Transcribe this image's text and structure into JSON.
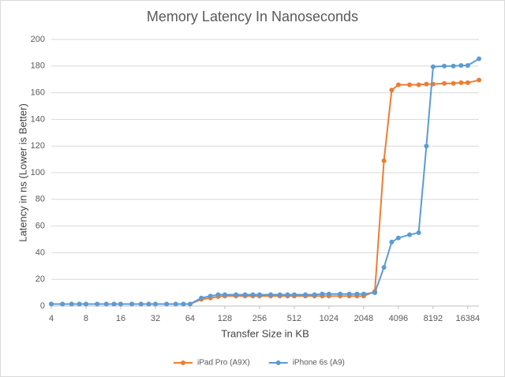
{
  "chart_data": {
    "type": "line",
    "title": "Memory Latency In Nanoseconds",
    "x_label": "Transfer Size in KB",
    "y_label": "Latency in ns (Lower is Better)",
    "x": [
      4,
      5,
      6,
      7,
      8,
      10,
      12,
      14,
      16,
      20,
      24,
      28,
      32,
      40,
      48,
      56,
      64,
      80,
      96,
      112,
      128,
      160,
      192,
      224,
      256,
      320,
      384,
      448,
      512,
      640,
      768,
      896,
      1024,
      1280,
      1536,
      1792,
      2048,
      2560,
      3072,
      3584,
      4096,
      5120,
      6144,
      7168,
      8192,
      10240,
      12288,
      14336,
      16384,
      20480
    ],
    "series": [
      {
        "name": "iPad Pro (A9X)",
        "color": "#ed7d31",
        "values": [
          1.5,
          1.5,
          1.5,
          1.5,
          1.5,
          1.5,
          1.5,
          1.5,
          1.5,
          1.5,
          1.5,
          1.5,
          1.5,
          1.5,
          1.5,
          1.5,
          1.5,
          5,
          6,
          7,
          7.5,
          7.5,
          7.5,
          7.5,
          7.5,
          7.5,
          7.5,
          7.5,
          7.5,
          7.5,
          7.5,
          7.5,
          7.5,
          7.5,
          7.5,
          7.5,
          7.5,
          11,
          109,
          162,
          166,
          166,
          166,
          166.5,
          166.5,
          167,
          167,
          167.5,
          167.5,
          169.5
        ]
      },
      {
        "name": "iPhone 6s (A9)",
        "color": "#5b9bd5",
        "values": [
          1.5,
          1.5,
          1.5,
          1.5,
          1.5,
          1.5,
          1.5,
          1.5,
          1.5,
          1.5,
          1.5,
          1.5,
          1.5,
          1.5,
          1.5,
          1.5,
          1.5,
          6,
          7.5,
          8.5,
          8.5,
          8.5,
          8.5,
          8.5,
          8.5,
          8.5,
          8.5,
          8.5,
          8.5,
          8.5,
          8.5,
          9,
          9,
          9,
          9,
          9,
          9,
          10,
          29,
          48,
          51,
          53.5,
          55,
          120,
          179.5,
          180,
          180,
          180.5,
          180.5,
          185.5
        ]
      }
    ],
    "xlim": [
      4,
      20480
    ],
    "xticks": [
      4,
      8,
      16,
      32,
      64,
      128,
      256,
      512,
      1024,
      2048,
      4096,
      8192,
      16384
    ],
    "x_log_base": 2,
    "ylim": [
      0,
      200
    ],
    "yticks": [
      0,
      20,
      40,
      60,
      80,
      100,
      120,
      140,
      160,
      180,
      200
    ],
    "grid": true,
    "legend": "bottom"
  }
}
